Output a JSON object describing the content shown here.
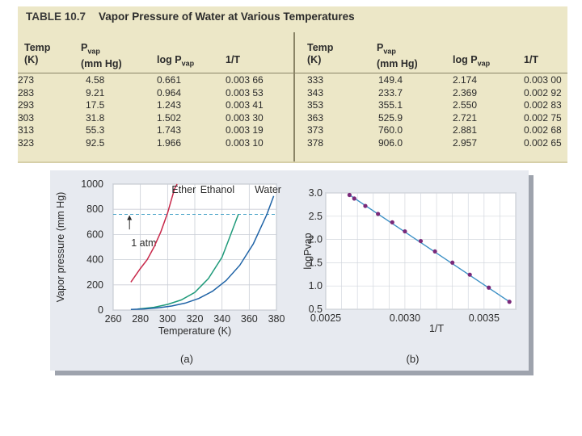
{
  "table": {
    "number": "TABLE 10.7",
    "title": "Vapor Pressure of Water at Various Temperatures",
    "headers": [
      {
        "l1": "Temp",
        "l2": "(K)"
      },
      {
        "l1": "P",
        "l1sub": "vap",
        "l2": "(mm Hg)"
      },
      {
        "l1": "",
        "l2": "log P",
        "l2sub": "vap"
      },
      {
        "l1": "",
        "l2": "1/T"
      },
      {
        "l1": "Temp",
        "l2": "(K)"
      },
      {
        "l1": "P",
        "l1sub": "vap",
        "l2": "(mm Hg)"
      },
      {
        "l1": "",
        "l2": "log P",
        "l2sub": "vap"
      },
      {
        "l1": "",
        "l2": "1/T"
      }
    ],
    "rows": [
      [
        "273",
        "4.58",
        "0.661",
        "0.003 66",
        "333",
        "149.4",
        "2.174",
        "0.003 00"
      ],
      [
        "283",
        "9.21",
        "0.964",
        "0.003 53",
        "343",
        "233.7",
        "2.369",
        "0.002 92"
      ],
      [
        "293",
        "17.5",
        "1.243",
        "0.003 41",
        "353",
        "355.1",
        "2.550",
        "0.002 83"
      ],
      [
        "303",
        "31.8",
        "1.502",
        "0.003 30",
        "363",
        "525.9",
        "2.721",
        "0.002 75"
      ],
      [
        "313",
        "55.3",
        "1.743",
        "0.003 19",
        "373",
        "760.0",
        "2.881",
        "0.002 68"
      ],
      [
        "323",
        "92.5",
        "1.966",
        "0.003 10",
        "378",
        "906.0",
        "2.957",
        "0.002 65"
      ]
    ]
  },
  "colors": {
    "ether": "#c8284a",
    "ethanol": "#1f9a7a",
    "water": "#1f63a6",
    "line_b": "#3b8fc4",
    "points_b": "#7a2a7a",
    "atm": "#4aa4c8"
  },
  "chart_data": [
    {
      "type": "line",
      "panel_label": "(a)",
      "xlabel": "Temperature (K)",
      "ylabel": "Vapor pressure (mm Hg)",
      "xlim": [
        260,
        380
      ],
      "ylim": [
        0,
        1000
      ],
      "xticks": [
        260,
        280,
        300,
        320,
        340,
        360,
        380
      ],
      "yticks": [
        0,
        200,
        400,
        600,
        800,
        1000
      ],
      "grid": true,
      "reference_line": {
        "y": 760,
        "label": "1 atm"
      },
      "series": [
        {
          "name": "Ether",
          "x": [
            273,
            280,
            285,
            290,
            295,
            300,
            305,
            307
          ],
          "y": [
            222,
            330,
            400,
            500,
            620,
            770,
            960,
            1000
          ]
        },
        {
          "name": "Ethanol",
          "x": [
            278,
            290,
            300,
            310,
            320,
            330,
            340,
            345,
            352
          ],
          "y": [
            8,
            22,
            45,
            80,
            140,
            250,
            420,
            560,
            760
          ]
        },
        {
          "name": "Water",
          "x": [
            273,
            283,
            293,
            303,
            313,
            323,
            333,
            343,
            353,
            363,
            373,
            378
          ],
          "y": [
            4.58,
            9.21,
            17.5,
            31.8,
            55.3,
            92.5,
            149.4,
            233.7,
            355.1,
            525.9,
            760.0,
            906.0
          ]
        }
      ]
    },
    {
      "type": "scatter",
      "panel_label": "(b)",
      "xlabel": "1/T",
      "ylabel": "logPvap",
      "xlim": [
        0.0025,
        0.0037
      ],
      "ylim": [
        0.5,
        3.0
      ],
      "xticks": [
        "0.0025",
        "0.0030",
        "0.0035"
      ],
      "yticks": [
        "0.5",
        "1.0",
        "1.5",
        "2.0",
        "2.5",
        "3.0"
      ],
      "grid": true,
      "fit_line": true,
      "x": [
        0.00265,
        0.00268,
        0.00275,
        0.00283,
        0.00292,
        0.003,
        0.0031,
        0.00319,
        0.0033,
        0.00341,
        0.00353,
        0.00366
      ],
      "y": [
        2.957,
        2.881,
        2.721,
        2.55,
        2.369,
        2.174,
        1.966,
        1.743,
        1.502,
        1.243,
        0.964,
        0.661
      ]
    }
  ]
}
